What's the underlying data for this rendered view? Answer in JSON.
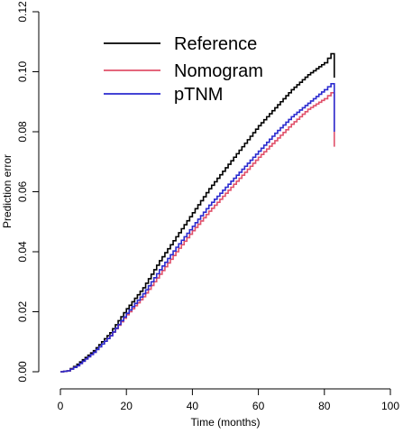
{
  "chart_data": {
    "type": "line",
    "title": "",
    "xlabel": "Time (months)",
    "ylabel": "Prediction error",
    "xlim": [
      0,
      100
    ],
    "ylim": [
      0,
      0.12
    ],
    "x_ticks": [
      0,
      20,
      40,
      60,
      80,
      100
    ],
    "y_ticks": [
      "0.00",
      "0.02",
      "0.04",
      "0.06",
      "0.08",
      "0.10",
      "0.12"
    ],
    "grid": false,
    "legend_position": "top-left",
    "series": [
      {
        "name": "Reference",
        "color": "#000000",
        "x": [
          0,
          2,
          5,
          10,
          15,
          20,
          25,
          30,
          35,
          40,
          45,
          50,
          55,
          60,
          65,
          70,
          75,
          80,
          83,
          83
        ],
        "y": [
          0,
          0.0003,
          0.0025,
          0.007,
          0.013,
          0.021,
          0.028,
          0.037,
          0.045,
          0.053,
          0.061,
          0.068,
          0.075,
          0.082,
          0.088,
          0.094,
          0.099,
          0.103,
          0.1075,
          0.098
        ]
      },
      {
        "name": "Nomogram",
        "color": "#e0506a",
        "x": [
          0,
          2,
          5,
          10,
          15,
          20,
          25,
          30,
          35,
          40,
          45,
          50,
          55,
          60,
          65,
          70,
          75,
          80,
          83,
          83
        ],
        "y": [
          0,
          0.0003,
          0.002,
          0.0065,
          0.012,
          0.019,
          0.025,
          0.0325,
          0.04,
          0.047,
          0.0535,
          0.0595,
          0.0655,
          0.0715,
          0.077,
          0.0825,
          0.0875,
          0.091,
          0.094,
          0.075
        ]
      },
      {
        "name": "pTNM",
        "color": "#2a2acf",
        "x": [
          0,
          2,
          5,
          10,
          15,
          20,
          25,
          30,
          35,
          40,
          45,
          50,
          55,
          60,
          65,
          70,
          75,
          80,
          83,
          83
        ],
        "y": [
          0,
          0.0003,
          0.002,
          0.0065,
          0.012,
          0.0195,
          0.026,
          0.034,
          0.0415,
          0.0485,
          0.0555,
          0.0615,
          0.0675,
          0.0735,
          0.0795,
          0.085,
          0.0895,
          0.094,
          0.097,
          0.08
        ]
      }
    ]
  }
}
